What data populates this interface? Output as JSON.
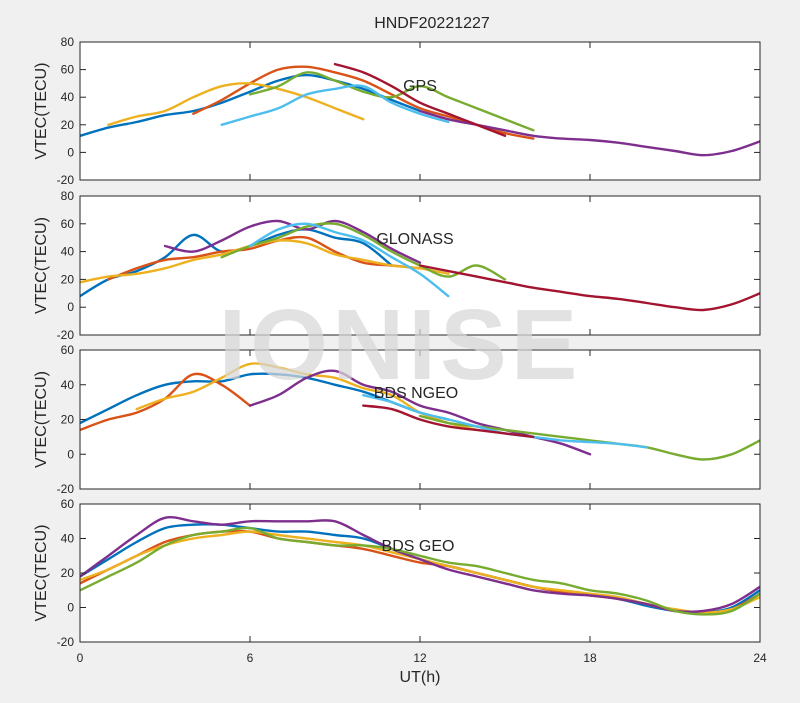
{
  "figure_title": "HNDF20221227",
  "watermark": "IONISE",
  "colors": [
    "#0072BD",
    "#D95319",
    "#EDB120",
    "#7E2F8E",
    "#77AC30",
    "#4DBEEE",
    "#A2142F"
  ],
  "chart_data": [
    {
      "type": "line",
      "title": "GPS",
      "xlabel": "",
      "ylabel": "VTEC(TECU)",
      "xlim": [
        0,
        24
      ],
      "ylim": [
        -20,
        80
      ],
      "xticks": [
        0,
        6,
        12,
        18,
        24
      ],
      "yticks": [
        -20,
        0,
        20,
        40,
        60,
        80
      ],
      "series": [
        {
          "x": [
            0,
            1,
            2,
            3,
            4,
            5,
            6,
            7,
            8,
            9,
            10,
            11,
            12
          ],
          "y": [
            12,
            18,
            22,
            27,
            30,
            36,
            44,
            52,
            56,
            52,
            46,
            38,
            30
          ]
        },
        {
          "x": [
            4,
            5,
            6,
            7,
            8,
            9,
            10,
            11,
            12,
            13,
            14,
            15,
            16
          ],
          "y": [
            28,
            38,
            50,
            60,
            62,
            58,
            52,
            42,
            32,
            26,
            20,
            14,
            10
          ]
        },
        {
          "x": [
            1,
            2,
            3,
            4,
            5,
            6,
            7,
            8,
            9,
            10
          ],
          "y": [
            20,
            26,
            30,
            40,
            48,
            50,
            46,
            40,
            32,
            24
          ]
        },
        {
          "x": [
            12,
            13,
            14,
            15,
            16,
            17,
            18,
            19,
            20,
            21,
            22,
            23,
            24
          ],
          "y": [
            30,
            24,
            20,
            16,
            12,
            10,
            9,
            7,
            4,
            1,
            -2,
            1,
            8
          ]
        },
        {
          "x": [
            6,
            7,
            8,
            9,
            10,
            11,
            12,
            13,
            14,
            15,
            16
          ],
          "y": [
            42,
            48,
            58,
            52,
            44,
            40,
            48,
            40,
            32,
            24,
            16
          ]
        },
        {
          "x": [
            5,
            6,
            7,
            8,
            9,
            10,
            11,
            12,
            13
          ],
          "y": [
            20,
            26,
            32,
            42,
            46,
            48,
            36,
            28,
            22
          ]
        },
        {
          "x": [
            9,
            10,
            11,
            12,
            13,
            14,
            15
          ],
          "y": [
            64,
            58,
            48,
            36,
            28,
            20,
            12
          ]
        }
      ]
    },
    {
      "type": "line",
      "title": "GLONASS",
      "xlabel": "",
      "ylabel": "VTEC(TECU)",
      "xlim": [
        0,
        24
      ],
      "ylim": [
        -20,
        80
      ],
      "xticks": [
        0,
        6,
        12,
        18,
        24
      ],
      "yticks": [
        -20,
        0,
        20,
        40,
        60,
        80
      ],
      "series": [
        {
          "x": [
            0,
            1,
            2,
            3,
            4,
            5,
            6,
            7,
            8,
            9,
            10,
            11
          ],
          "y": [
            8,
            20,
            26,
            36,
            52,
            40,
            44,
            52,
            56,
            50,
            46,
            30
          ]
        },
        {
          "x": [
            1,
            2,
            3,
            4,
            5,
            6,
            7,
            8,
            9,
            10,
            11,
            12
          ],
          "y": [
            20,
            28,
            34,
            36,
            40,
            42,
            48,
            50,
            40,
            32,
            30,
            28
          ]
        },
        {
          "x": [
            0,
            1,
            2,
            3,
            4,
            5,
            6,
            7,
            8,
            9,
            10,
            11,
            12,
            13
          ],
          "y": [
            18,
            22,
            24,
            28,
            34,
            38,
            44,
            48,
            46,
            38,
            34,
            30,
            28,
            24
          ]
        },
        {
          "x": [
            3,
            4,
            5,
            6,
            7,
            8,
            9,
            10,
            11,
            12
          ],
          "y": [
            44,
            40,
            48,
            58,
            62,
            56,
            62,
            54,
            42,
            32
          ]
        },
        {
          "x": [
            5,
            6,
            7,
            8,
            9,
            10,
            11,
            12,
            13,
            14,
            15
          ],
          "y": [
            36,
            44,
            50,
            58,
            60,
            52,
            40,
            30,
            22,
            30,
            20
          ]
        },
        {
          "x": [
            6,
            7,
            8,
            9,
            10,
            11,
            12,
            13
          ],
          "y": [
            44,
            56,
            60,
            54,
            48,
            36,
            24,
            8
          ]
        },
        {
          "x": [
            12,
            13,
            14,
            15,
            16,
            17,
            18,
            19,
            20,
            21,
            22,
            23,
            24
          ],
          "y": [
            30,
            26,
            22,
            18,
            14,
            11,
            8,
            6,
            3,
            0,
            -2,
            2,
            10
          ]
        }
      ]
    },
    {
      "type": "line",
      "title": "BDS NGEO",
      "xlabel": "",
      "ylabel": "VTEC(TECU)",
      "xlim": [
        0,
        24
      ],
      "ylim": [
        -20,
        60
      ],
      "xticks": [
        0,
        6,
        12,
        18,
        24
      ],
      "yticks": [
        -20,
        0,
        20,
        40,
        60
      ],
      "series": [
        {
          "x": [
            0,
            1,
            2,
            3,
            4,
            5,
            6,
            7,
            8,
            9,
            10,
            11,
            12,
            13
          ],
          "y": [
            18,
            26,
            34,
            40,
            42,
            42,
            46,
            46,
            44,
            40,
            36,
            30,
            24,
            20
          ]
        },
        {
          "x": [
            0,
            1,
            2,
            3,
            4,
            5,
            6
          ],
          "y": [
            14,
            20,
            24,
            32,
            46,
            40,
            28
          ]
        },
        {
          "x": [
            2,
            3,
            4,
            5,
            6,
            7,
            8,
            9,
            10,
            11,
            12,
            13,
            14
          ],
          "y": [
            26,
            32,
            36,
            44,
            52,
            50,
            46,
            44,
            38,
            34,
            24,
            18,
            14
          ]
        },
        {
          "x": [
            6,
            7,
            8,
            9,
            10,
            11,
            12,
            13,
            14,
            15,
            16,
            17,
            18
          ],
          "y": [
            28,
            34,
            44,
            48,
            40,
            36,
            28,
            24,
            18,
            14,
            10,
            6,
            0
          ]
        },
        {
          "x": [
            12,
            13,
            14,
            15,
            16,
            17,
            18,
            19,
            20,
            21,
            22,
            23,
            24
          ],
          "y": [
            22,
            18,
            16,
            14,
            12,
            10,
            8,
            6,
            4,
            0,
            -3,
            0,
            8
          ]
        },
        {
          "x": [
            10,
            11,
            12,
            13,
            14,
            15,
            16,
            17,
            18,
            19,
            20
          ],
          "y": [
            34,
            30,
            24,
            20,
            16,
            12,
            10,
            8,
            7,
            6,
            4
          ]
        },
        {
          "x": [
            10,
            11,
            12,
            13,
            14,
            15,
            16
          ],
          "y": [
            28,
            26,
            20,
            16,
            14,
            12,
            10
          ]
        }
      ]
    },
    {
      "type": "line",
      "title": "BDS GEO",
      "xlabel": "UT(h)",
      "ylabel": "VTEC(TECU)",
      "xlim": [
        0,
        24
      ],
      "ylim": [
        -20,
        60
      ],
      "xticks": [
        0,
        6,
        12,
        18,
        24
      ],
      "yticks": [
        -20,
        0,
        20,
        40,
        60
      ],
      "series": [
        {
          "x": [
            0,
            1,
            2,
            3,
            4,
            5,
            6,
            7,
            8,
            9,
            10,
            11,
            12,
            13,
            14,
            15,
            16,
            17,
            18,
            19,
            20,
            21,
            22,
            23,
            24
          ],
          "y": [
            18,
            28,
            38,
            46,
            48,
            48,
            46,
            44,
            44,
            42,
            40,
            34,
            28,
            24,
            20,
            16,
            12,
            9,
            7,
            5,
            1,
            -2,
            -3,
            0,
            10
          ]
        },
        {
          "x": [
            0,
            1,
            2,
            3,
            4,
            5,
            6,
            7,
            8,
            9,
            10,
            11,
            12,
            13,
            14,
            15,
            16,
            17,
            18,
            19,
            20,
            21,
            22,
            23,
            24
          ],
          "y": [
            14,
            22,
            30,
            38,
            42,
            44,
            44,
            40,
            38,
            36,
            34,
            30,
            26,
            24,
            20,
            16,
            12,
            9,
            7,
            5,
            2,
            -2,
            -3,
            -1,
            8
          ]
        },
        {
          "x": [
            0,
            1,
            2,
            3,
            4,
            5,
            6,
            7,
            8,
            9,
            10,
            11,
            12,
            13,
            14,
            15,
            16,
            17,
            18,
            19,
            20,
            21,
            22,
            23,
            24
          ],
          "y": [
            16,
            22,
            30,
            36,
            40,
            42,
            44,
            42,
            40,
            38,
            36,
            32,
            28,
            24,
            20,
            16,
            12,
            10,
            8,
            6,
            2,
            -1,
            -3,
            -1,
            6
          ]
        },
        {
          "x": [
            0,
            1,
            2,
            3,
            4,
            5,
            6,
            7,
            8,
            9,
            10,
            11,
            12,
            13,
            14,
            15,
            16,
            17,
            18,
            19,
            20,
            21,
            22,
            23,
            24
          ],
          "y": [
            18,
            30,
            42,
            52,
            50,
            48,
            50,
            50,
            50,
            50,
            42,
            34,
            28,
            22,
            18,
            14,
            10,
            8,
            7,
            5,
            2,
            -2,
            -2,
            2,
            12
          ]
        },
        {
          "x": [
            0,
            1,
            2,
            3,
            4,
            5,
            6,
            7,
            8,
            9,
            10,
            11,
            12,
            13,
            14,
            15,
            16,
            17,
            18,
            19,
            20,
            21,
            22,
            23,
            24
          ],
          "y": [
            10,
            18,
            26,
            36,
            42,
            44,
            46,
            40,
            38,
            36,
            36,
            34,
            30,
            26,
            24,
            20,
            16,
            14,
            10,
            8,
            4,
            -2,
            -4,
            -2,
            8
          ]
        }
      ]
    }
  ]
}
